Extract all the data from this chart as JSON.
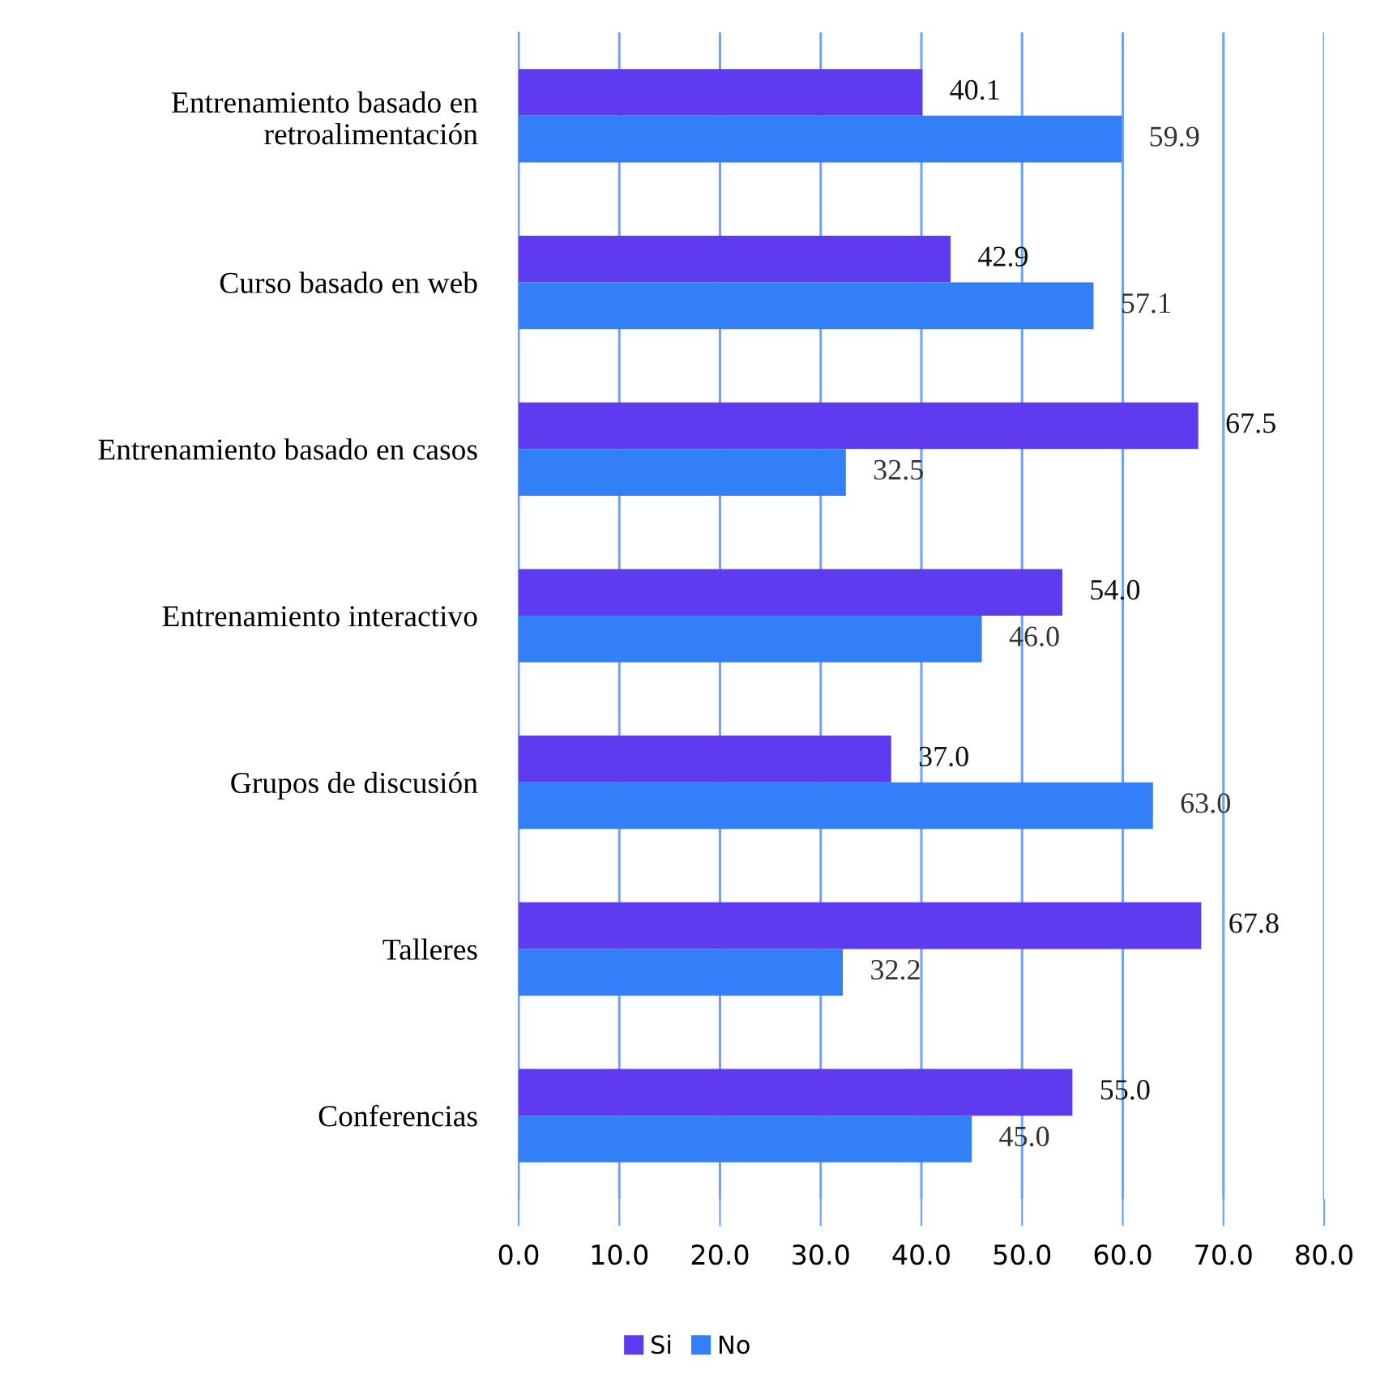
{
  "chart_data": {
    "type": "bar",
    "orientation": "horizontal",
    "categories": [
      "Entrenamiento basado en\nretroalimentación",
      "Curso basado en web",
      "Entrenamiento basado en casos",
      "Entrenamiento interactivo",
      "Grupos de discusión",
      "Talleres",
      "Conferencias"
    ],
    "series": [
      {
        "name": "Si",
        "color": "#5f3bef",
        "values": [
          40.1,
          42.9,
          67.5,
          54.0,
          37.0,
          67.8,
          55.0
        ],
        "value_labels": [
          "40.1",
          "42.9",
          "67.5",
          "54.0",
          "37.0",
          "67.8",
          "55.0"
        ]
      },
      {
        "name": "No",
        "color": "#337ff8",
        "values": [
          59.9,
          57.1,
          32.5,
          46.0,
          63.0,
          32.2,
          45.0
        ],
        "value_labels": [
          "59.9",
          "57.1",
          "32.5",
          "46.0",
          "63.0",
          "32.2",
          "45.0"
        ]
      }
    ],
    "xlim": [
      0,
      80
    ],
    "xticks": [
      {
        "value": 0,
        "label": "0.0"
      },
      {
        "value": 10,
        "label": "10.0"
      },
      {
        "value": 20,
        "label": "20.0"
      },
      {
        "value": 30,
        "label": "30.0"
      },
      {
        "value": 40,
        "label": "40.0"
      },
      {
        "value": 50,
        "label": "50.0"
      },
      {
        "value": 60,
        "label": "60.0"
      },
      {
        "value": 70,
        "label": "70.0"
      },
      {
        "value": 80,
        "label": "80.0"
      }
    ],
    "grid": "x",
    "legend": "bottom"
  }
}
